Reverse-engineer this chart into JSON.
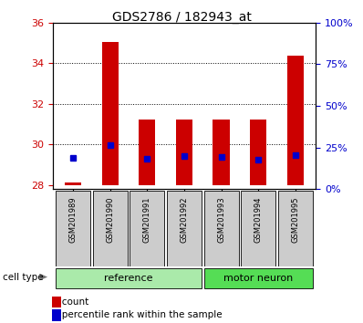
{
  "title": "GDS2786 / 182943_at",
  "samples": [
    "GSM201989",
    "GSM201990",
    "GSM201991",
    "GSM201992",
    "GSM201993",
    "GSM201994",
    "GSM201995"
  ],
  "bar_bottom": [
    28,
    28,
    28,
    28,
    28,
    28,
    28
  ],
  "bar_top": [
    28.12,
    35.05,
    31.2,
    31.2,
    31.2,
    31.2,
    34.35
  ],
  "percentile_y": [
    29.35,
    29.97,
    29.27,
    29.42,
    29.37,
    29.25,
    29.48
  ],
  "ylim_left": [
    27.8,
    36
  ],
  "ylim_right": [
    0,
    100
  ],
  "yticks_left": [
    28,
    30,
    32,
    34,
    36
  ],
  "yticks_right": [
    0,
    25,
    50,
    75,
    100
  ],
  "ytick_labels_right": [
    "0%",
    "25%",
    "50%",
    "75%",
    "100%"
  ],
  "bar_color": "#cc0000",
  "dot_color": "#0000cc",
  "bar_width": 0.45,
  "ref_indices": [
    0,
    1,
    2,
    3
  ],
  "mot_indices": [
    4,
    5,
    6
  ],
  "ref_color": "#aaeaaa",
  "mot_color": "#55dd55",
  "label_bg": "#cccccc",
  "tick_color_left": "#cc0000",
  "tick_color_right": "#0000cc",
  "bg_color": "#ffffff",
  "grid_yticks": [
    30,
    32,
    34
  ],
  "legend_items": [
    "count",
    "percentile rank within the sample"
  ],
  "legend_colors": [
    "#cc0000",
    "#0000cc"
  ]
}
